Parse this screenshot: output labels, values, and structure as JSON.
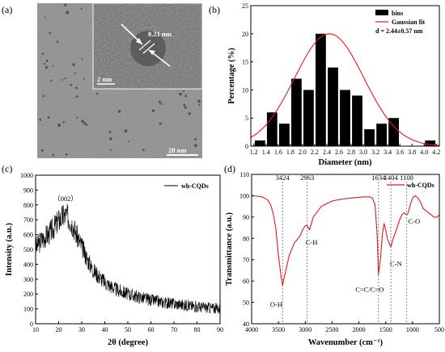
{
  "panels": {
    "a": {
      "label": "(a)",
      "inset_measure": "0.21 nm",
      "inset_scale": "2 nm",
      "scale_bar": "20 nm"
    }
  },
  "chart_data": [
    {
      "panel": "(b)",
      "type": "bar",
      "x": [
        1.3,
        1.5,
        1.7,
        1.9,
        2.1,
        2.3,
        2.5,
        2.7,
        2.9,
        3.1,
        3.3,
        3.5,
        4.1
      ],
      "values": [
        1,
        6,
        4,
        12,
        10,
        20,
        14,
        10,
        9,
        3,
        4,
        5,
        1
      ],
      "xlim": [
        1.15,
        4.25
      ],
      "ylim": [
        0,
        25
      ],
      "xticks": [
        "1.2",
        "1.4",
        "1.6",
        "1.8",
        "2.0",
        "2.2",
        "2.4",
        "2.6",
        "2.8",
        "3.0",
        "3.2",
        "3.4",
        "3.6",
        "3.8",
        "4.0",
        "4.2"
      ],
      "yticks": [
        "0",
        "5",
        "10",
        "15",
        "20",
        "25"
      ],
      "xlabel": "Diameter (nm)",
      "ylabel": "Percentage (%)",
      "legend": {
        "position": "top-right",
        "entries": [
          "bins",
          "Gaussian fit"
        ],
        "note": "d = 2.44±0.57 nm"
      },
      "fit": {
        "type": "gaussian",
        "mean": 2.44,
        "sd": 0.57,
        "peak": 20,
        "color": "#e41a1c"
      },
      "bar_color": "#000000"
    },
    {
      "panel": "(c)",
      "type": "line",
      "series": [
        {
          "name": "wh-CQDs",
          "x": [
            10,
            12,
            14,
            16,
            18,
            20,
            22,
            23,
            24,
            26,
            28,
            30,
            32,
            35,
            40,
            45,
            50,
            55,
            60,
            65,
            70,
            75,
            80,
            85,
            90
          ],
          "y": [
            510,
            555,
            585,
            610,
            650,
            695,
            725,
            730,
            720,
            670,
            590,
            520,
            450,
            360,
            280,
            230,
            200,
            180,
            160,
            145,
            135,
            125,
            115,
            108,
            100
          ]
        }
      ],
      "xlim": [
        10,
        90
      ],
      "ylim": [
        0,
        1000
      ],
      "xticks": [
        "10",
        "20",
        "30",
        "40",
        "50",
        "60",
        "70",
        "80",
        "90"
      ],
      "yticks": [
        "0",
        "100",
        "200",
        "300",
        "400",
        "500",
        "600",
        "700",
        "800",
        "900",
        "1000"
      ],
      "xlabel": "2θ (degree)",
      "ylabel": "Intensity (a.u.)",
      "peak_label": "（002）",
      "line_color": "#000000"
    },
    {
      "panel": "(d)",
      "type": "line",
      "series": [
        {
          "name": "wh-CQDs",
          "x": [
            4000,
            3900,
            3800,
            3700,
            3650,
            3600,
            3550,
            3500,
            3450,
            3424,
            3380,
            3300,
            3200,
            3100,
            3050,
            3000,
            2963,
            2920,
            2850,
            2700,
            2500,
            2300,
            2100,
            1900,
            1800,
            1750,
            1700,
            1660,
            1634,
            1600,
            1560,
            1530,
            1500,
            1470,
            1440,
            1404,
            1360,
            1300,
            1250,
            1200,
            1150,
            1108,
            1080,
            1050,
            1000,
            950,
            900,
            850,
            800,
            750,
            700,
            650,
            600,
            550,
            500
          ],
          "y": [
            100,
            99.8,
            99.5,
            98,
            96,
            92,
            85,
            72,
            62,
            58,
            63,
            72,
            78,
            81,
            84,
            86,
            86,
            84,
            90,
            95,
            97.5,
            98.5,
            99,
            99.5,
            99.5,
            99,
            96,
            82,
            63,
            70,
            82,
            87,
            84,
            80,
            78,
            76,
            80,
            84,
            88,
            91,
            92,
            91,
            92,
            95,
            99,
            100,
            99,
            97,
            94,
            93,
            92,
            91,
            90,
            90,
            91
          ]
        }
      ],
      "xlim": [
        4000,
        500
      ],
      "ylim": [
        40,
        110
      ],
      "xticks": [
        "4000",
        "3500",
        "3000",
        "2500",
        "2000",
        "1500",
        "1000",
        "500"
      ],
      "yticks": [
        "40",
        "50",
        "60",
        "70",
        "80",
        "90",
        "100",
        "110"
      ],
      "xlabel": "Wavenumber (cm⁻¹)",
      "ylabel": "Transmittance (a.u.)",
      "peaks": [
        {
          "label": "3424",
          "x": 3424
        },
        {
          "label": "2963",
          "x": 2963
        },
        {
          "label": "1634",
          "x": 1634
        },
        {
          "label": "1404",
          "x": 1404
        },
        {
          "label": "1108",
          "x": 1108
        }
      ],
      "groups": [
        {
          "label": "O-H",
          "x": 3540,
          "y": 48
        },
        {
          "label": "C-H",
          "x": 2880,
          "y": 77
        },
        {
          "label": "C=C/C=O",
          "x": 1800,
          "y": 55
        },
        {
          "label": "C-N",
          "x": 1310,
          "y": 67
        },
        {
          "label": "C-O",
          "x": 970,
          "y": 87
        }
      ],
      "line_color": "#e41a1c"
    }
  ]
}
